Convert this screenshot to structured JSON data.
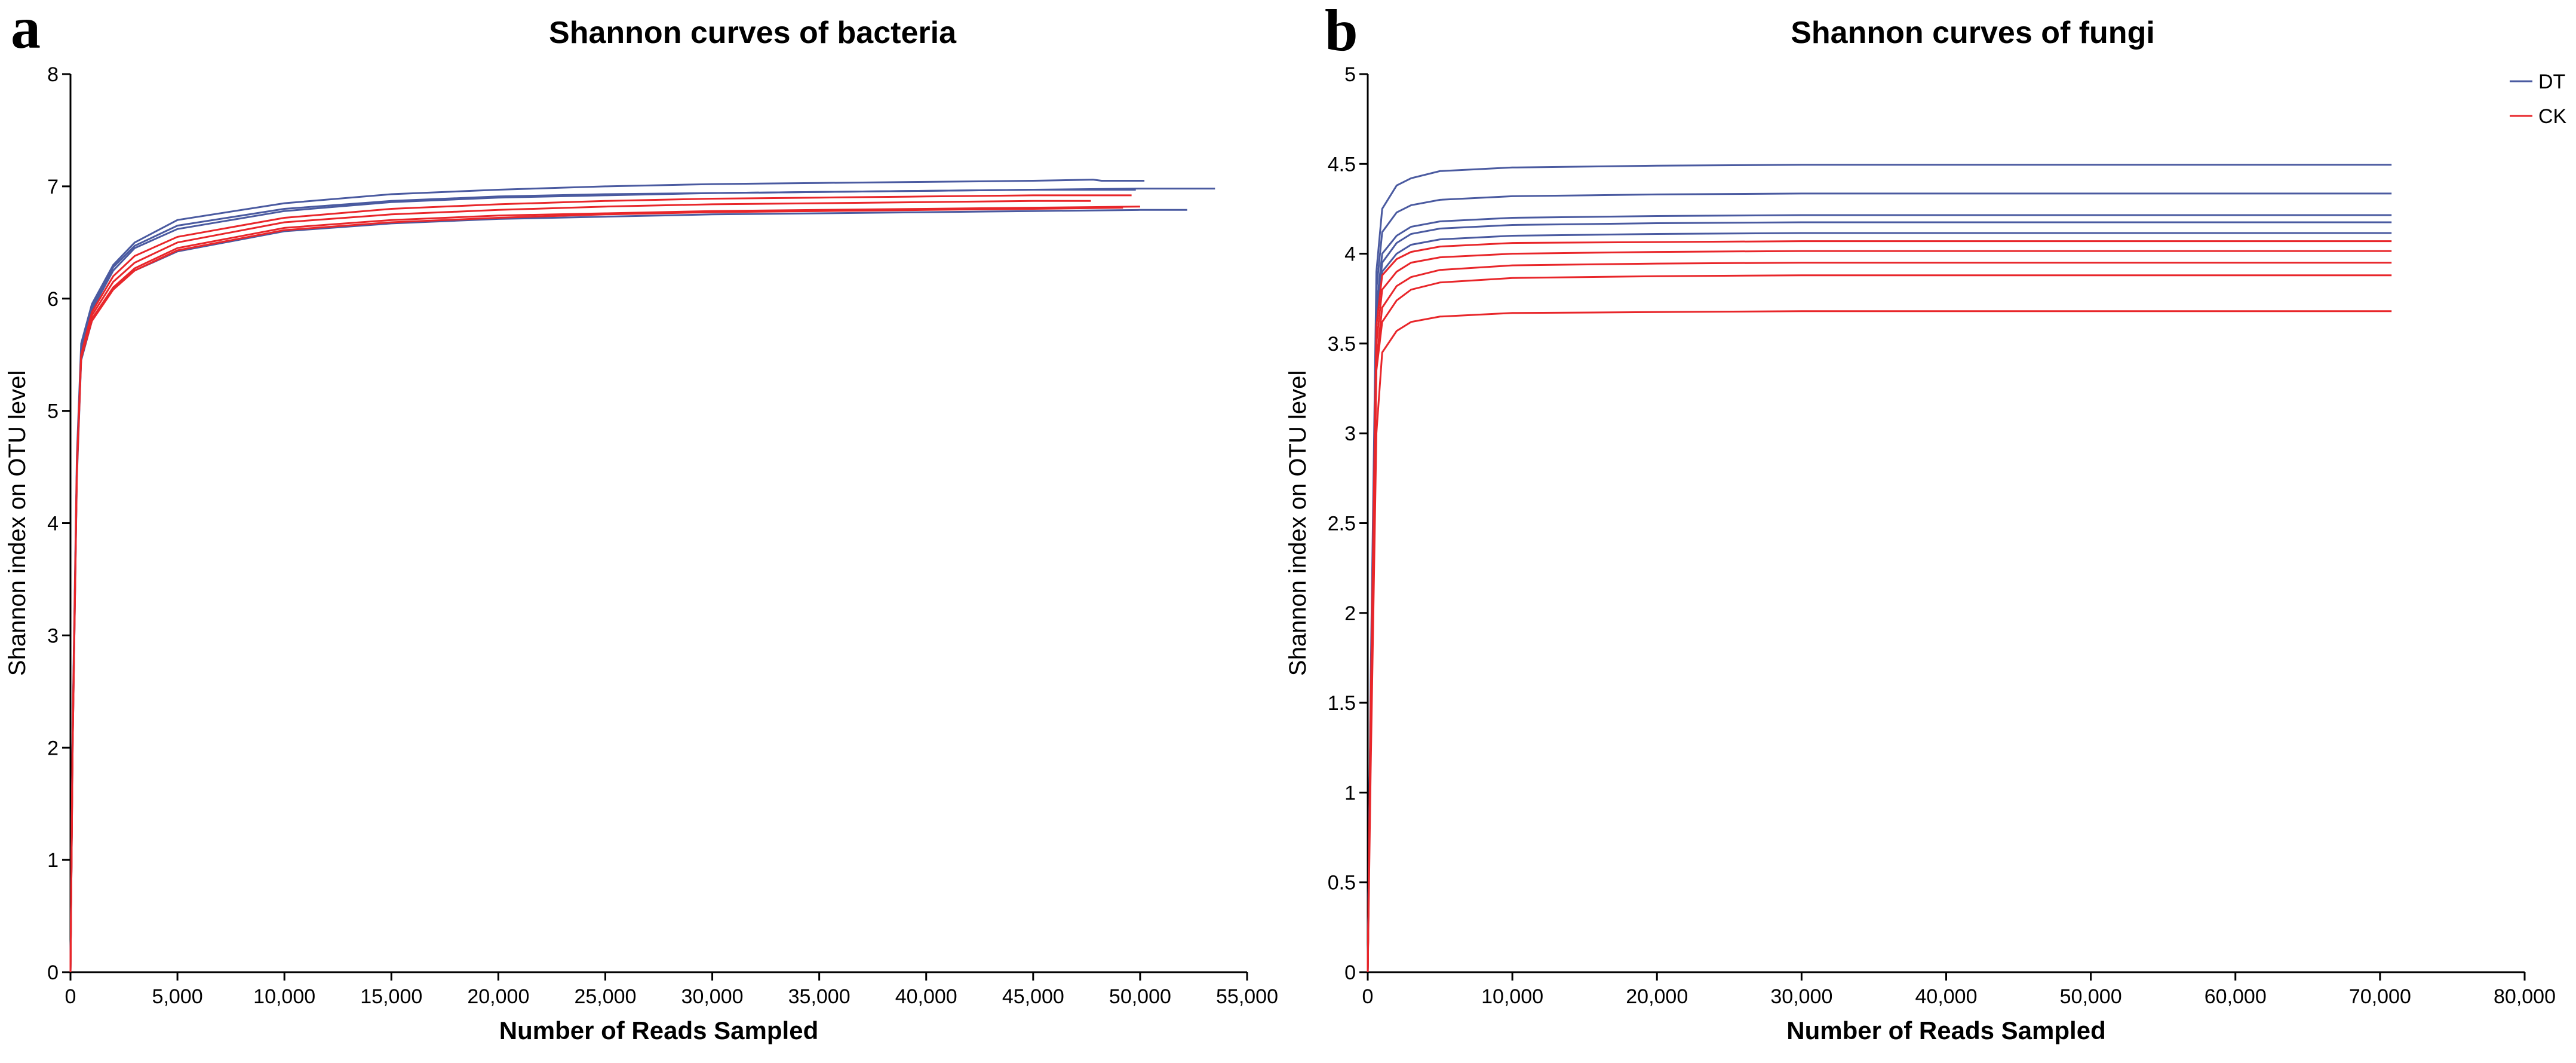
{
  "chart_data": [
    {
      "type": "line",
      "panel_label": "a",
      "title": "Shannon curves of bacteria",
      "xlabel": "Number of Reads Sampled",
      "ylabel": "Shannon index on OTU level",
      "xlim": [
        0,
        55000
      ],
      "ylim": [
        0,
        8
      ],
      "xticks": [
        0,
        5000,
        10000,
        15000,
        20000,
        25000,
        30000,
        35000,
        40000,
        45000,
        50000,
        55000
      ],
      "xtick_labels": [
        "0",
        "5,000",
        "10,000",
        "15,000",
        "20,000",
        "25,000",
        "30,000",
        "35,000",
        "40,000",
        "45,000",
        "50,000",
        "55,000"
      ],
      "yticks": [
        0,
        1,
        2,
        3,
        4,
        5,
        6,
        7,
        8
      ],
      "ytick_labels": [
        "0",
        "1",
        "2",
        "3",
        "4",
        "5",
        "6",
        "7",
        "8"
      ],
      "grid": false,
      "series": [
        {
          "group": "DT",
          "color": "#4a5aa0",
          "x": [
            0,
            100,
            300,
            500,
            1000,
            2000,
            3000,
            5000,
            10000,
            15000,
            20000,
            25000,
            30000,
            35000,
            40000,
            45000,
            47800,
            48200,
            50200
          ],
          "y": [
            0,
            2.2,
            4.6,
            5.6,
            5.95,
            6.3,
            6.5,
            6.7,
            6.85,
            6.93,
            6.97,
            7.0,
            7.02,
            7.03,
            7.04,
            7.05,
            7.06,
            7.05,
            7.05
          ]
        },
        {
          "group": "DT",
          "color": "#4a5aa0",
          "x": [
            0,
            100,
            300,
            500,
            1000,
            2000,
            3000,
            5000,
            10000,
            15000,
            20000,
            25000,
            30000,
            35000,
            40000,
            45000,
            50000,
            53500
          ],
          "y": [
            0,
            2.1,
            4.5,
            5.5,
            5.9,
            6.25,
            6.45,
            6.62,
            6.78,
            6.86,
            6.9,
            6.92,
            6.94,
            6.95,
            6.96,
            6.97,
            6.98,
            6.98
          ]
        },
        {
          "group": "DT",
          "color": "#4a5aa0",
          "x": [
            0,
            100,
            300,
            500,
            1000,
            2000,
            3000,
            5000,
            10000,
            15000,
            20000,
            25000,
            30000,
            35000,
            40000,
            45000,
            50000,
            52200
          ],
          "y": [
            0,
            2.0,
            4.4,
            5.45,
            5.8,
            6.1,
            6.25,
            6.42,
            6.6,
            6.67,
            6.71,
            6.73,
            6.75,
            6.76,
            6.77,
            6.78,
            6.79,
            6.79
          ]
        },
        {
          "group": "DT",
          "color": "#4a5aa0",
          "x": [
            0,
            100,
            300,
            500,
            1000,
            2000,
            3000,
            5000,
            10000,
            15000,
            20000,
            25000,
            30000,
            35000,
            40000,
            45000,
            49800
          ],
          "y": [
            0,
            2.1,
            4.5,
            5.55,
            5.92,
            6.28,
            6.47,
            6.65,
            6.8,
            6.87,
            6.91,
            6.93,
            6.94,
            6.95,
            6.96,
            6.97,
            6.97
          ]
        },
        {
          "group": "CK",
          "color": "#e8262a",
          "x": [
            0,
            100,
            300,
            500,
            1000,
            2000,
            3000,
            5000,
            10000,
            15000,
            20000,
            25000,
            30000,
            35000,
            40000,
            45000,
            49600
          ],
          "y": [
            0,
            2.1,
            4.5,
            5.5,
            5.88,
            6.2,
            6.38,
            6.55,
            6.72,
            6.8,
            6.84,
            6.87,
            6.89,
            6.9,
            6.91,
            6.92,
            6.92
          ]
        },
        {
          "group": "CK",
          "color": "#e8262a",
          "x": [
            0,
            100,
            300,
            500,
            1000,
            2000,
            3000,
            5000,
            10000,
            15000,
            20000,
            25000,
            30000,
            35000,
            40000,
            45000,
            47700
          ],
          "y": [
            0,
            2.1,
            4.5,
            5.5,
            5.85,
            6.15,
            6.32,
            6.5,
            6.68,
            6.75,
            6.79,
            6.82,
            6.84,
            6.85,
            6.86,
            6.87,
            6.87
          ]
        },
        {
          "group": "CK",
          "color": "#e8262a",
          "x": [
            0,
            100,
            300,
            500,
            1000,
            2000,
            3000,
            5000,
            10000,
            15000,
            20000,
            25000,
            30000,
            35000,
            40000,
            45000,
            50000
          ],
          "y": [
            0,
            2.0,
            4.45,
            5.48,
            5.82,
            6.1,
            6.27,
            6.45,
            6.63,
            6.7,
            6.74,
            6.76,
            6.78,
            6.79,
            6.8,
            6.81,
            6.82
          ]
        },
        {
          "group": "CK",
          "color": "#e8262a",
          "x": [
            0,
            100,
            300,
            500,
            1000,
            2000,
            3000,
            5000,
            10000,
            15000,
            20000,
            25000,
            30000,
            35000,
            40000,
            45000,
            49200
          ],
          "y": [
            0,
            2.0,
            4.45,
            5.47,
            5.8,
            6.08,
            6.25,
            6.43,
            6.61,
            6.68,
            6.72,
            6.75,
            6.77,
            6.78,
            6.79,
            6.8,
            6.81
          ]
        }
      ]
    },
    {
      "type": "line",
      "panel_label": "b",
      "title": "Shannon curves of fungi",
      "xlabel": "Number of Reads Sampled",
      "ylabel": "Shannon index on OTU level",
      "xlim": [
        0,
        80000
      ],
      "ylim": [
        0,
        5
      ],
      "xticks": [
        0,
        10000,
        20000,
        30000,
        40000,
        50000,
        60000,
        70000,
        80000
      ],
      "xtick_labels": [
        "0",
        "10,000",
        "20,000",
        "30,000",
        "40,000",
        "50,000",
        "60,000",
        "70,000",
        "80,000"
      ],
      "yticks": [
        0,
        0.5,
        1,
        1.5,
        2,
        2.5,
        3,
        3.5,
        4,
        4.5,
        5
      ],
      "ytick_labels": [
        "0",
        "0.5",
        "1",
        "1.5",
        "2",
        "2.5",
        "3",
        "3.5",
        "4",
        "4.5",
        "5"
      ],
      "grid": false,
      "legend": {
        "placement": "top-right",
        "entries": [
          {
            "label": "DT",
            "color": "#4a5aa0"
          },
          {
            "label": "CK",
            "color": "#e8262a"
          }
        ]
      },
      "series": [
        {
          "group": "DT",
          "color": "#4a5aa0",
          "x": [
            0,
            200,
            600,
            1000,
            2000,
            3000,
            5000,
            10000,
            20000,
            30000,
            50000,
            70800
          ],
          "y": [
            0,
            1.6,
            3.9,
            4.25,
            4.38,
            4.42,
            4.46,
            4.48,
            4.49,
            4.495,
            4.495,
            4.495
          ]
        },
        {
          "group": "DT",
          "color": "#4a5aa0",
          "x": [
            0,
            200,
            600,
            1000,
            2000,
            3000,
            5000,
            10000,
            20000,
            30000,
            50000,
            70800
          ],
          "y": [
            0,
            1.5,
            3.8,
            4.12,
            4.23,
            4.27,
            4.3,
            4.32,
            4.33,
            4.335,
            4.335,
            4.335
          ]
        },
        {
          "group": "DT",
          "color": "#4a5aa0",
          "x": [
            0,
            200,
            600,
            1000,
            2000,
            3000,
            5000,
            10000,
            20000,
            30000,
            50000,
            70800
          ],
          "y": [
            0,
            1.5,
            3.7,
            4.0,
            4.1,
            4.15,
            4.18,
            4.2,
            4.21,
            4.215,
            4.215,
            4.215
          ]
        },
        {
          "group": "DT",
          "color": "#4a5aa0",
          "x": [
            0,
            200,
            600,
            1000,
            2000,
            3000,
            5000,
            10000,
            20000,
            30000,
            50000,
            70800
          ],
          "y": [
            0,
            1.5,
            3.65,
            3.95,
            4.06,
            4.11,
            4.14,
            4.16,
            4.17,
            4.175,
            4.175,
            4.175
          ]
        },
        {
          "group": "DT",
          "color": "#4a5aa0",
          "x": [
            0,
            200,
            600,
            1000,
            2000,
            3000,
            5000,
            10000,
            20000,
            30000,
            50000,
            70800
          ],
          "y": [
            0,
            1.45,
            3.6,
            3.9,
            4.0,
            4.05,
            4.08,
            4.1,
            4.11,
            4.115,
            4.115,
            4.115
          ]
        },
        {
          "group": "CK",
          "color": "#e8262a",
          "x": [
            0,
            200,
            600,
            1000,
            2000,
            3000,
            5000,
            10000,
            20000,
            30000,
            50000,
            70800
          ],
          "y": [
            0,
            1.45,
            3.6,
            3.88,
            3.97,
            4.01,
            4.04,
            4.06,
            4.065,
            4.07,
            4.07,
            4.07
          ]
        },
        {
          "group": "CK",
          "color": "#e8262a",
          "x": [
            0,
            200,
            600,
            1000,
            2000,
            3000,
            5000,
            10000,
            20000,
            30000,
            50000,
            70800
          ],
          "y": [
            0,
            1.4,
            3.5,
            3.8,
            3.9,
            3.95,
            3.98,
            4.0,
            4.01,
            4.015,
            4.015,
            4.015
          ]
        },
        {
          "group": "CK",
          "color": "#e8262a",
          "x": [
            0,
            200,
            600,
            1000,
            2000,
            3000,
            5000,
            10000,
            20000,
            30000,
            50000,
            70800
          ],
          "y": [
            0,
            1.35,
            3.4,
            3.7,
            3.82,
            3.87,
            3.91,
            3.935,
            3.945,
            3.95,
            3.95,
            3.95
          ]
        },
        {
          "group": "CK",
          "color": "#e8262a",
          "x": [
            0,
            200,
            600,
            1000,
            2000,
            3000,
            5000,
            10000,
            20000,
            30000,
            50000,
            70800
          ],
          "y": [
            0,
            1.3,
            3.35,
            3.62,
            3.74,
            3.8,
            3.84,
            3.865,
            3.875,
            3.88,
            3.88,
            3.88
          ]
        },
        {
          "group": "CK",
          "color": "#e8262a",
          "x": [
            0,
            200,
            600,
            1000,
            2000,
            3000,
            5000,
            10000,
            20000,
            30000,
            50000,
            70800
          ],
          "y": [
            0,
            1.1,
            3.0,
            3.45,
            3.57,
            3.62,
            3.65,
            3.67,
            3.675,
            3.68,
            3.68,
            3.68
          ]
        }
      ]
    }
  ]
}
